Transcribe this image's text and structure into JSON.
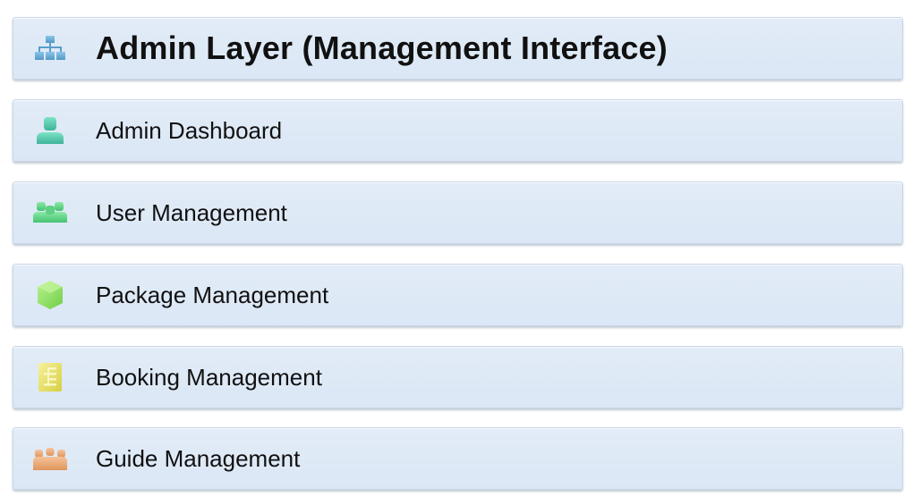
{
  "header": {
    "title": "Admin Layer (Management Interface)",
    "icon": "hierarchy-icon",
    "icon_color": "#6aaed6"
  },
  "items": [
    {
      "label": "Admin Dashboard",
      "icon": "person-icon",
      "icon_color": "#5fcfb4"
    },
    {
      "label": "User Management",
      "icon": "users-icon",
      "icon_color": "#66d98a"
    },
    {
      "label": "Package Management",
      "icon": "package-icon",
      "icon_color": "#9ae86a"
    },
    {
      "label": "Booking Management",
      "icon": "booking-list-icon",
      "icon_color": "#e8e46a"
    },
    {
      "label": "Guide Management",
      "icon": "guide-icon",
      "icon_color": "#eaa771"
    }
  ]
}
